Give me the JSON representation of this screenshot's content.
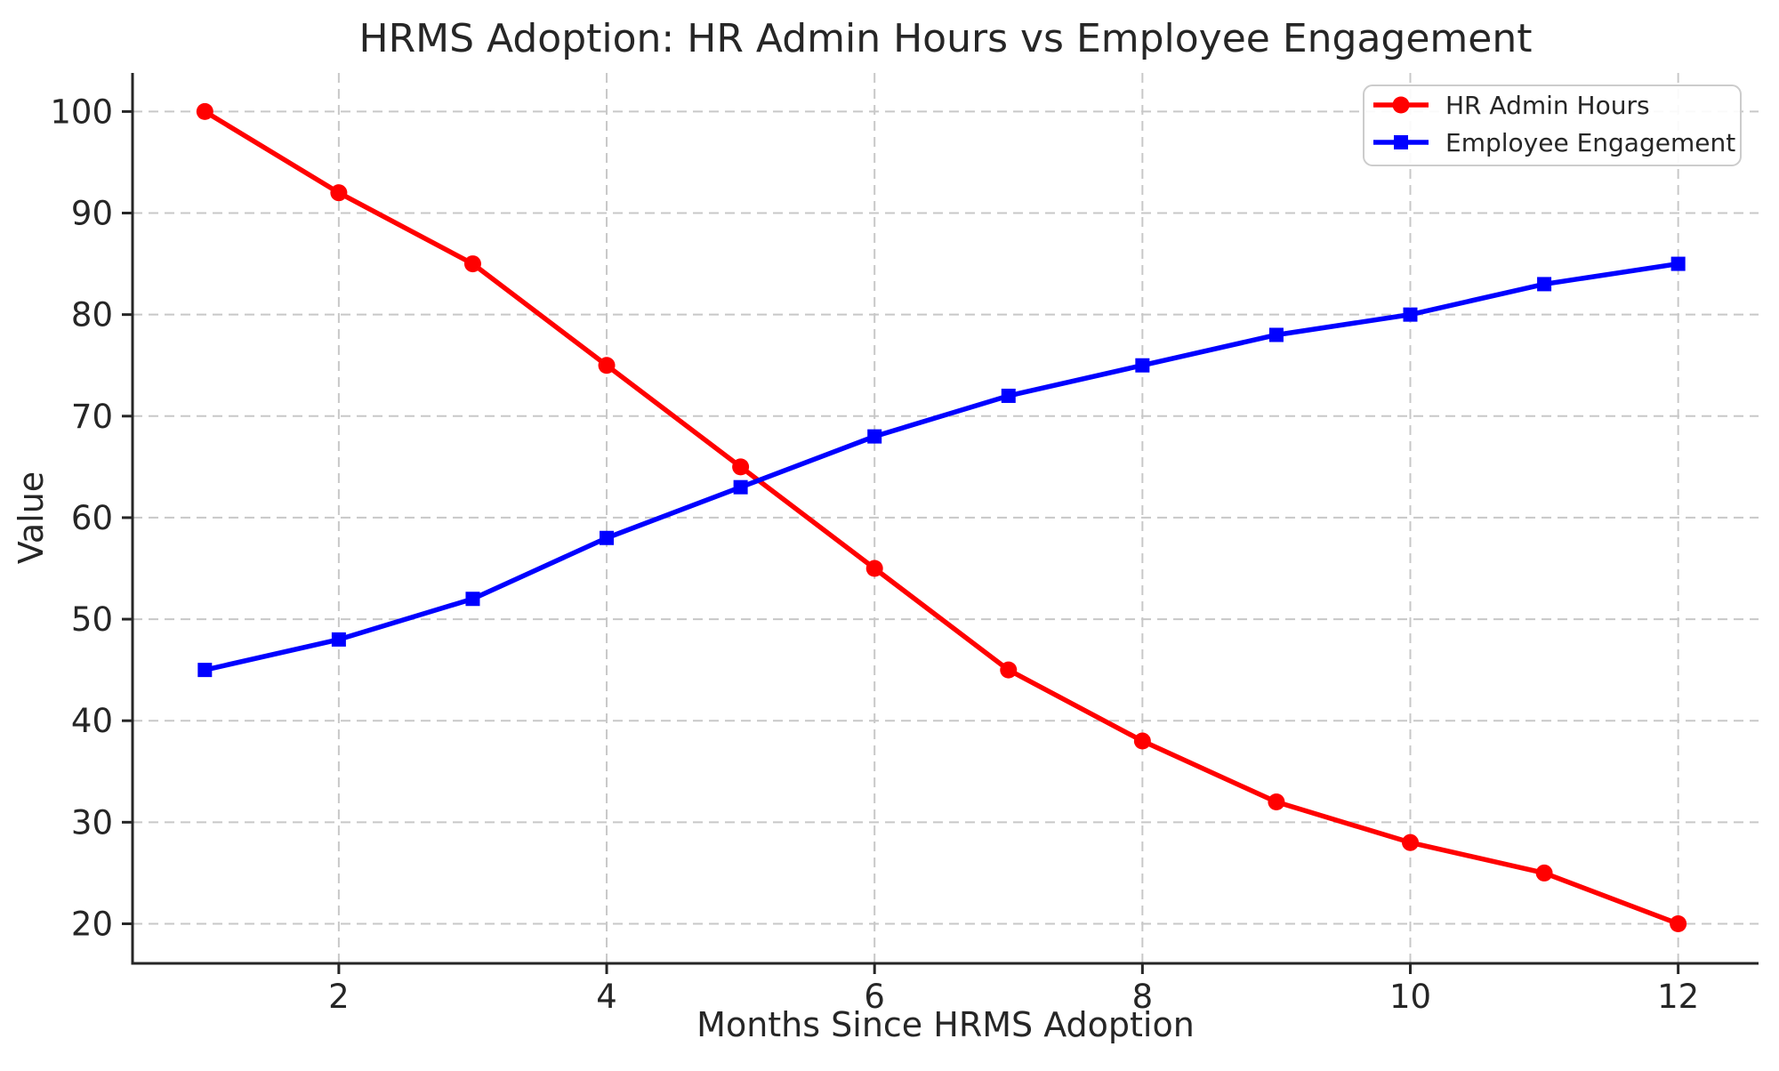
{
  "chart_data": {
    "type": "line",
    "title": "HRMS Adoption: HR Admin Hours vs Employee Engagement",
    "xlabel": "Months Since HRMS Adoption",
    "ylabel": "Value",
    "x": [
      1,
      2,
      3,
      4,
      5,
      6,
      7,
      8,
      9,
      10,
      11,
      12
    ],
    "series": [
      {
        "name": "HR Admin Hours",
        "color": "#ff0000",
        "marker": "circle",
        "values": [
          100,
          92,
          85,
          75,
          65,
          55,
          45,
          38,
          32,
          28,
          25,
          20
        ]
      },
      {
        "name": "Employee Engagement",
        "color": "#0000ff",
        "marker": "square",
        "values": [
          45,
          48,
          52,
          58,
          63,
          68,
          72,
          75,
          78,
          80,
          83,
          85
        ]
      }
    ],
    "x_ticks": [
      2,
      4,
      6,
      8,
      10,
      12
    ],
    "y_ticks": [
      20,
      30,
      40,
      50,
      60,
      70,
      80,
      90,
      100
    ],
    "xlim": [
      0.46,
      12.6
    ],
    "ylim": [
      16.1,
      103.8
    ],
    "grid": true,
    "legend_position": "upper right",
    "colors": {
      "background": "#ffffff",
      "text": "#262626",
      "spine": "#262626",
      "grid": "#c8c8c8"
    }
  }
}
